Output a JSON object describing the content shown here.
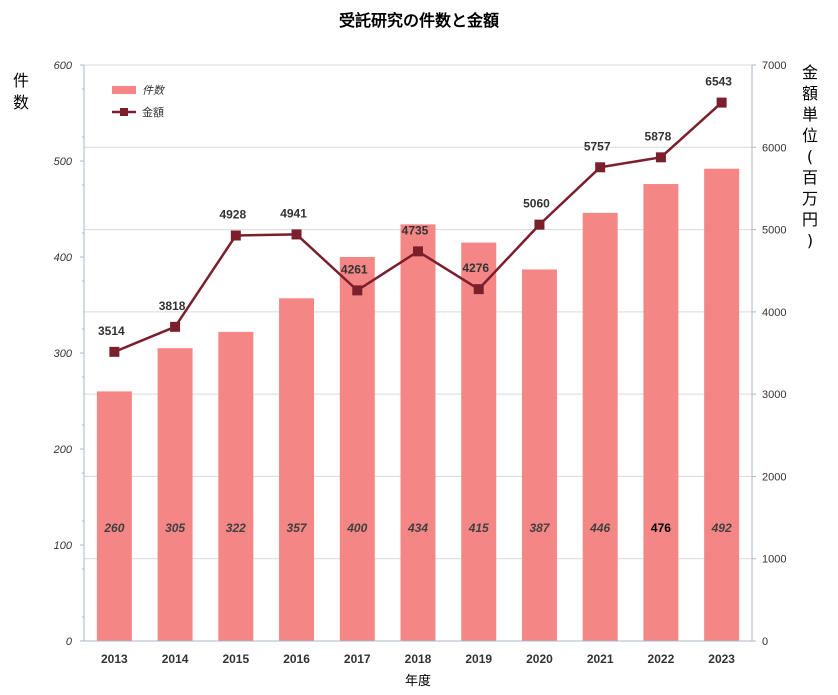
{
  "chart_data": {
    "type": "bar",
    "title": "受託研究の件数と金額",
    "xlabel": "年度",
    "ylabel_left": "件数",
    "ylabel_right": "金額単位(百万円)",
    "categories": [
      "2013",
      "2014",
      "2015",
      "2016",
      "2017",
      "2018",
      "2019",
      "2020",
      "2021",
      "2022",
      "2023"
    ],
    "series": [
      {
        "name": "件数",
        "type": "bar",
        "axis": "left",
        "color": "#f48786",
        "values": [
          260,
          305,
          322,
          357,
          400,
          434,
          415,
          387,
          446,
          476,
          492
        ]
      },
      {
        "name": "金額",
        "type": "line",
        "axis": "right",
        "color": "#7b1f2c",
        "marker": "square",
        "values": [
          3514,
          3818,
          4928,
          4941,
          4261,
          4735,
          4276,
          5060,
          5757,
          5878,
          6543
        ]
      }
    ],
    "ylim_left": [
      0,
      600
    ],
    "ylim_right": [
      0,
      7000
    ],
    "yticks_left": [
      0,
      100,
      200,
      300,
      400,
      500,
      600
    ],
    "yticks_right": [
      0,
      1000,
      2000,
      3000,
      4000,
      5000,
      6000,
      7000
    ],
    "grid": true,
    "legend_position": "top-left"
  }
}
